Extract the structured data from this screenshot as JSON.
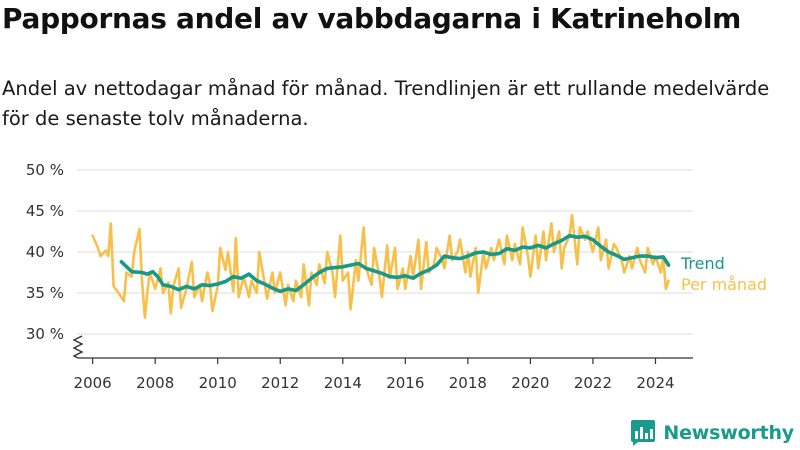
{
  "title": "Pappornas andel av vabbdagarna i Katrineholm",
  "subtitle": "Andel av nettodagar månad för månad. Trendlinjen är ett rullande medelvärde för de senaste tolv månaderna.",
  "brand": {
    "name": "Newsworthy",
    "color": "#1a9a8a"
  },
  "chart_data": {
    "type": "line",
    "xlabel": "",
    "ylabel": "",
    "xlim": [
      2005.5,
      2025.2
    ],
    "ylim": [
      27,
      50
    ],
    "x_ticks": [
      2006,
      2008,
      2010,
      2012,
      2014,
      2016,
      2018,
      2020,
      2022,
      2024
    ],
    "y_ticks": [
      {
        "value": 30,
        "label": "30 %"
      },
      {
        "value": 35,
        "label": "35 %"
      },
      {
        "value": 40,
        "label": "40 %"
      },
      {
        "value": 45,
        "label": "45 %"
      },
      {
        "value": 50,
        "label": "50 %"
      }
    ],
    "y_axis_break": true,
    "grid": "horizontal",
    "legend": "inline-right",
    "series": [
      {
        "name": "Trend",
        "color": "#17998a",
        "x": [
          2006.92,
          2007.25,
          2007.58,
          2007.75,
          2007.92,
          2008.08,
          2008.25,
          2008.5,
          2008.75,
          2009.0,
          2009.25,
          2009.5,
          2009.75,
          2010.0,
          2010.25,
          2010.5,
          2010.75,
          2011.0,
          2011.25,
          2011.5,
          2011.75,
          2012.0,
          2012.25,
          2012.5,
          2012.75,
          2013.0,
          2013.25,
          2013.5,
          2013.75,
          2014.0,
          2014.25,
          2014.5,
          2014.75,
          2015.0,
          2015.25,
          2015.5,
          2015.75,
          2016.0,
          2016.25,
          2016.5,
          2016.75,
          2017.0,
          2017.25,
          2017.5,
          2017.75,
          2018.0,
          2018.25,
          2018.5,
          2018.75,
          2019.0,
          2019.25,
          2019.5,
          2019.75,
          2020.0,
          2020.25,
          2020.5,
          2020.75,
          2021.0,
          2021.25,
          2021.5,
          2021.75,
          2022.0,
          2022.25,
          2022.5,
          2022.75,
          2023.0,
          2023.25,
          2023.5,
          2023.75,
          2024.0,
          2024.25,
          2024.42
        ],
        "y": [
          38.8,
          37.6,
          37.5,
          37.3,
          37.6,
          37.0,
          36.0,
          35.8,
          35.4,
          35.8,
          35.5,
          36.0,
          35.9,
          36.1,
          36.4,
          37.0,
          36.8,
          37.3,
          36.5,
          36.1,
          35.6,
          35.2,
          35.5,
          35.3,
          36.0,
          36.8,
          37.5,
          38.0,
          38.1,
          38.2,
          38.4,
          38.6,
          38.0,
          37.7,
          37.4,
          37.0,
          36.9,
          37.1,
          36.8,
          37.4,
          37.8,
          38.4,
          39.5,
          39.3,
          39.2,
          39.5,
          39.9,
          40.0,
          39.7,
          39.8,
          40.4,
          40.2,
          40.6,
          40.5,
          40.8,
          40.5,
          41.0,
          41.4,
          42.0,
          41.8,
          41.9,
          41.5,
          40.7,
          40.0,
          39.6,
          39.1,
          39.3,
          39.5,
          39.5,
          39.3,
          39.4,
          38.4
        ]
      },
      {
        "name": "Per månad",
        "color": "#f7c04a",
        "x": [
          2006.0,
          2006.17,
          2006.25,
          2006.42,
          2006.5,
          2006.58,
          2006.67,
          2006.83,
          2007.0,
          2007.08,
          2007.25,
          2007.33,
          2007.5,
          2007.58,
          2007.67,
          2007.75,
          2007.83,
          2008.0,
          2008.17,
          2008.25,
          2008.42,
          2008.5,
          2008.58,
          2008.75,
          2008.83,
          2009.0,
          2009.17,
          2009.25,
          2009.42,
          2009.5,
          2009.67,
          2009.75,
          2009.83,
          2010.0,
          2010.08,
          2010.25,
          2010.33,
          2010.5,
          2010.58,
          2010.67,
          2010.83,
          2011.0,
          2011.08,
          2011.25,
          2011.33,
          2011.5,
          2011.58,
          2011.75,
          2011.83,
          2012.0,
          2012.17,
          2012.25,
          2012.42,
          2012.5,
          2012.67,
          2012.75,
          2012.92,
          2013.0,
          2013.17,
          2013.25,
          2013.42,
          2013.5,
          2013.67,
          2013.75,
          2013.92,
          2014.0,
          2014.17,
          2014.25,
          2014.42,
          2014.5,
          2014.67,
          2014.75,
          2014.92,
          2015.0,
          2015.17,
          2015.25,
          2015.42,
          2015.5,
          2015.67,
          2015.75,
          2015.92,
          2016.0,
          2016.17,
          2016.25,
          2016.42,
          2016.5,
          2016.67,
          2016.75,
          2016.92,
          2017.0,
          2017.17,
          2017.25,
          2017.42,
          2017.5,
          2017.67,
          2017.75,
          2017.92,
          2018.0,
          2018.08,
          2018.25,
          2018.33,
          2018.5,
          2018.58,
          2018.75,
          2018.83,
          2019.0,
          2019.17,
          2019.25,
          2019.42,
          2019.5,
          2019.67,
          2019.75,
          2019.92,
          2020.0,
          2020.17,
          2020.25,
          2020.42,
          2020.5,
          2020.67,
          2020.75,
          2020.92,
          2021.0,
          2021.08,
          2021.25,
          2021.33,
          2021.5,
          2021.58,
          2021.75,
          2021.83,
          2022.0,
          2022.17,
          2022.25,
          2022.42,
          2022.5,
          2022.67,
          2022.75,
          2022.92,
          2023.0,
          2023.17,
          2023.25,
          2023.42,
          2023.5,
          2023.67,
          2023.75,
          2023.92,
          2024.0,
          2024.17,
          2024.25,
          2024.33,
          2024.42
        ],
        "y": [
          42.0,
          40.5,
          39.5,
          40.2,
          39.5,
          43.5,
          35.8,
          35.0,
          34.0,
          37.5,
          37.0,
          40.0,
          42.8,
          36.5,
          32.0,
          35.2,
          37.5,
          35.5,
          38.0,
          35.0,
          36.3,
          32.5,
          35.8,
          38.0,
          33.2,
          35.5,
          38.8,
          34.5,
          36.0,
          34.0,
          37.5,
          36.2,
          32.8,
          35.8,
          40.5,
          37.8,
          40.0,
          35.2,
          41.7,
          34.5,
          37.0,
          34.5,
          36.5,
          35.0,
          40.0,
          36.2,
          34.3,
          37.5,
          35.0,
          37.5,
          33.5,
          36.0,
          34.0,
          36.5,
          34.5,
          38.5,
          33.5,
          37.5,
          36.0,
          38.5,
          36.2,
          40.0,
          37.5,
          34.5,
          42.0,
          36.5,
          37.5,
          33.0,
          39.0,
          36.5,
          43.0,
          38.0,
          36.0,
          40.5,
          37.0,
          34.5,
          40.8,
          36.8,
          40.5,
          35.5,
          38.0,
          35.5,
          39.5,
          37.0,
          41.5,
          35.5,
          41.2,
          37.5,
          38.5,
          40.5,
          39.2,
          38.0,
          42.0,
          39.0,
          40.0,
          41.5,
          37.5,
          40.0,
          37.0,
          40.5,
          35.0,
          40.0,
          38.0,
          40.5,
          39.0,
          41.5,
          38.5,
          42.0,
          39.0,
          41.0,
          38.5,
          43.0,
          39.5,
          37.0,
          42.0,
          38.0,
          42.5,
          39.0,
          43.5,
          40.0,
          42.5,
          38.0,
          40.5,
          42.0,
          44.5,
          38.5,
          43.0,
          41.5,
          42.5,
          40.0,
          43.0,
          39.0,
          41.5,
          38.0,
          41.0,
          40.5,
          39.0,
          37.5,
          39.5,
          38.0,
          40.5,
          39.0,
          37.5,
          40.5,
          38.5,
          39.5,
          37.5,
          39.5,
          35.5,
          36.5
        ]
      }
    ]
  }
}
